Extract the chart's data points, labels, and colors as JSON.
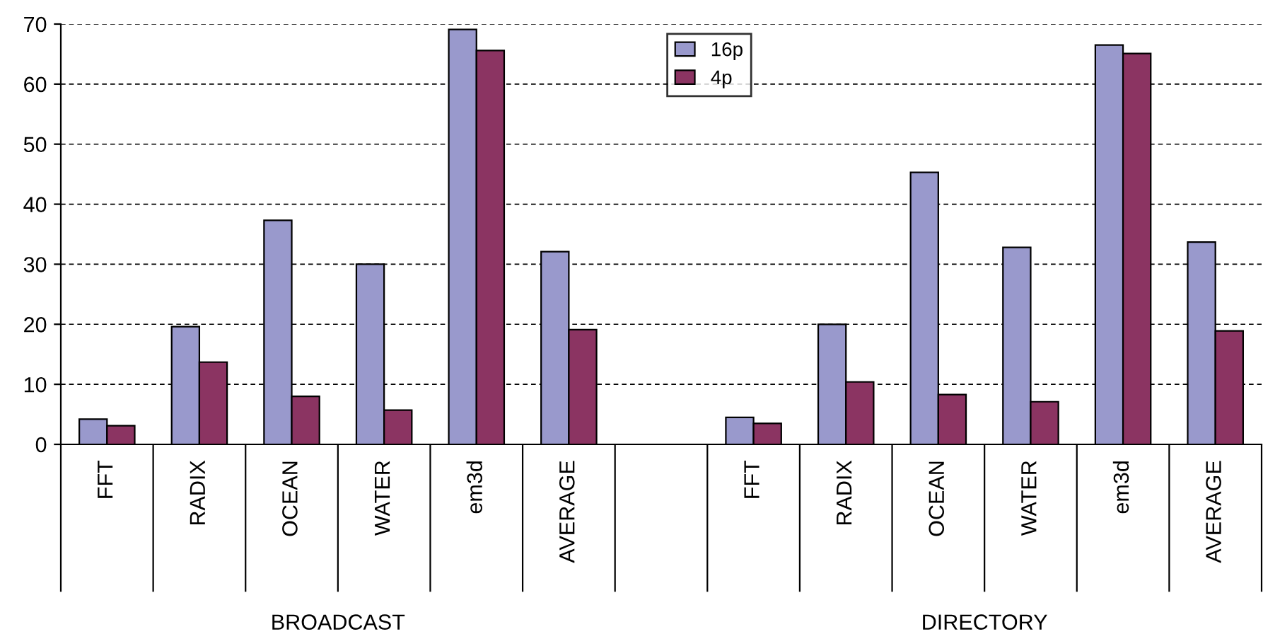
{
  "chart_data": {
    "type": "bar",
    "categories": [
      "FFT",
      "RADIX",
      "OCEAN",
      "WATER",
      "em3d",
      "AVERAGE",
      null,
      "FFT",
      "RADIX",
      "OCEAN",
      "WATER",
      "em3d",
      "AVERAGE"
    ],
    "series": [
      {
        "name": "16p",
        "color": "#9999cc",
        "values": [
          4.2,
          19.6,
          37.3,
          30.0,
          69.1,
          32.1,
          null,
          4.5,
          20.0,
          45.3,
          32.8,
          66.5,
          33.7
        ]
      },
      {
        "name": "4p",
        "color": "#8b3462",
        "values": [
          3.1,
          13.7,
          8.0,
          5.7,
          65.6,
          19.1,
          null,
          3.5,
          10.4,
          8.3,
          7.1,
          65.1,
          18.9
        ]
      }
    ],
    "ylim": [
      0,
      70
    ],
    "yticks": [
      0,
      10,
      20,
      30,
      40,
      50,
      60,
      70
    ],
    "grid": "y",
    "legend": "top",
    "annotations": [
      "BROADCAST",
      "DIRECTORY"
    ]
  }
}
